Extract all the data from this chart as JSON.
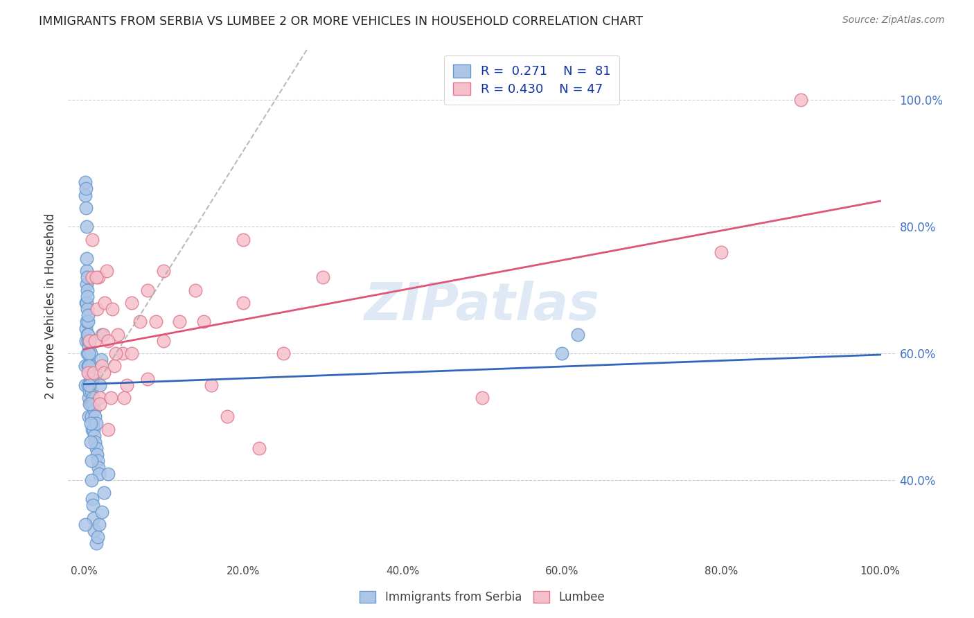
{
  "title": "IMMIGRANTS FROM SERBIA VS LUMBEE 2 OR MORE VEHICLES IN HOUSEHOLD CORRELATION CHART",
  "source": "Source: ZipAtlas.com",
  "ylabel": "2 or more Vehicles in Household",
  "legend_top_label1": "R =  0.271    N =  81",
  "legend_top_label2": "R = 0.430    N = 47",
  "legend_bot_label1": "Immigrants from Serbia",
  "legend_bot_label2": "Lumbee",
  "r_serbia": 0.271,
  "n_serbia": 81,
  "r_lumbee": 0.43,
  "n_lumbee": 47,
  "blue_face": "#adc6e8",
  "blue_edge": "#6699cc",
  "pink_face": "#f5c0cc",
  "pink_edge": "#e07890",
  "trend_blue": "#3366bb",
  "trend_pink": "#dd5577",
  "trend_gray": "#aaaaaa",
  "watermark": "ZIPatlas",
  "serbia_x": [
    0.001,
    0.001,
    0.002,
    0.002,
    0.002,
    0.003,
    0.003,
    0.003,
    0.003,
    0.004,
    0.004,
    0.004,
    0.004,
    0.005,
    0.005,
    0.005,
    0.005,
    0.006,
    0.006,
    0.006,
    0.006,
    0.007,
    0.007,
    0.007,
    0.008,
    0.008,
    0.008,
    0.009,
    0.009,
    0.009,
    0.01,
    0.01,
    0.01,
    0.011,
    0.011,
    0.012,
    0.012,
    0.013,
    0.013,
    0.014,
    0.014,
    0.015,
    0.015,
    0.016,
    0.017,
    0.018,
    0.019,
    0.02,
    0.021,
    0.022,
    0.001,
    0.001,
    0.002,
    0.002,
    0.003,
    0.003,
    0.004,
    0.004,
    0.005,
    0.005,
    0.006,
    0.006,
    0.007,
    0.007,
    0.008,
    0.008,
    0.009,
    0.009,
    0.01,
    0.011,
    0.012,
    0.013,
    0.015,
    0.017,
    0.019,
    0.022,
    0.025,
    0.03,
    0.6,
    0.62,
    0.001
  ],
  "serbia_y": [
    0.55,
    0.58,
    0.62,
    0.64,
    0.68,
    0.65,
    0.68,
    0.71,
    0.73,
    0.6,
    0.63,
    0.67,
    0.7,
    0.55,
    0.58,
    0.62,
    0.65,
    0.5,
    0.53,
    0.57,
    0.61,
    0.54,
    0.58,
    0.62,
    0.52,
    0.56,
    0.6,
    0.5,
    0.54,
    0.58,
    0.48,
    0.52,
    0.56,
    0.49,
    0.53,
    0.48,
    0.52,
    0.47,
    0.51,
    0.46,
    0.5,
    0.45,
    0.49,
    0.44,
    0.43,
    0.42,
    0.41,
    0.55,
    0.59,
    0.63,
    0.85,
    0.87,
    0.83,
    0.86,
    0.8,
    0.75,
    0.72,
    0.69,
    0.66,
    0.63,
    0.6,
    0.58,
    0.55,
    0.52,
    0.49,
    0.46,
    0.43,
    0.4,
    0.37,
    0.36,
    0.34,
    0.32,
    0.3,
    0.31,
    0.33,
    0.35,
    0.38,
    0.41,
    0.6,
    0.63,
    0.33
  ],
  "lumbee_x": [
    0.005,
    0.007,
    0.01,
    0.012,
    0.014,
    0.016,
    0.018,
    0.02,
    0.022,
    0.024,
    0.026,
    0.028,
    0.03,
    0.034,
    0.038,
    0.042,
    0.048,
    0.054,
    0.06,
    0.07,
    0.08,
    0.09,
    0.1,
    0.12,
    0.14,
    0.16,
    0.18,
    0.2,
    0.22,
    0.25,
    0.01,
    0.015,
    0.02,
    0.025,
    0.03,
    0.035,
    0.04,
    0.05,
    0.06,
    0.08,
    0.1,
    0.15,
    0.2,
    0.3,
    0.5,
    0.8,
    0.9
  ],
  "lumbee_y": [
    0.57,
    0.62,
    0.72,
    0.57,
    0.62,
    0.67,
    0.72,
    0.53,
    0.58,
    0.63,
    0.68,
    0.73,
    0.48,
    0.53,
    0.58,
    0.63,
    0.6,
    0.55,
    0.6,
    0.65,
    0.7,
    0.65,
    0.62,
    0.65,
    0.7,
    0.55,
    0.5,
    0.68,
    0.45,
    0.6,
    0.78,
    0.72,
    0.52,
    0.57,
    0.62,
    0.67,
    0.6,
    0.53,
    0.68,
    0.56,
    0.73,
    0.65,
    0.78,
    0.72,
    0.53,
    0.76,
    1.0
  ],
  "xlim": [
    -0.02,
    1.02
  ],
  "ylim": [
    0.27,
    1.08
  ],
  "xticks": [
    0.0,
    0.2,
    0.4,
    0.6,
    0.8,
    1.0
  ],
  "yticks": [
    0.4,
    0.6,
    0.8,
    1.0
  ],
  "xticklabels": [
    "0.0%",
    "20.0%",
    "40.0%",
    "60.0%",
    "80.0%",
    "100.0%"
  ],
  "yticklabels_right": [
    "40.0%",
    "60.0%",
    "80.0%",
    "100.0%"
  ]
}
